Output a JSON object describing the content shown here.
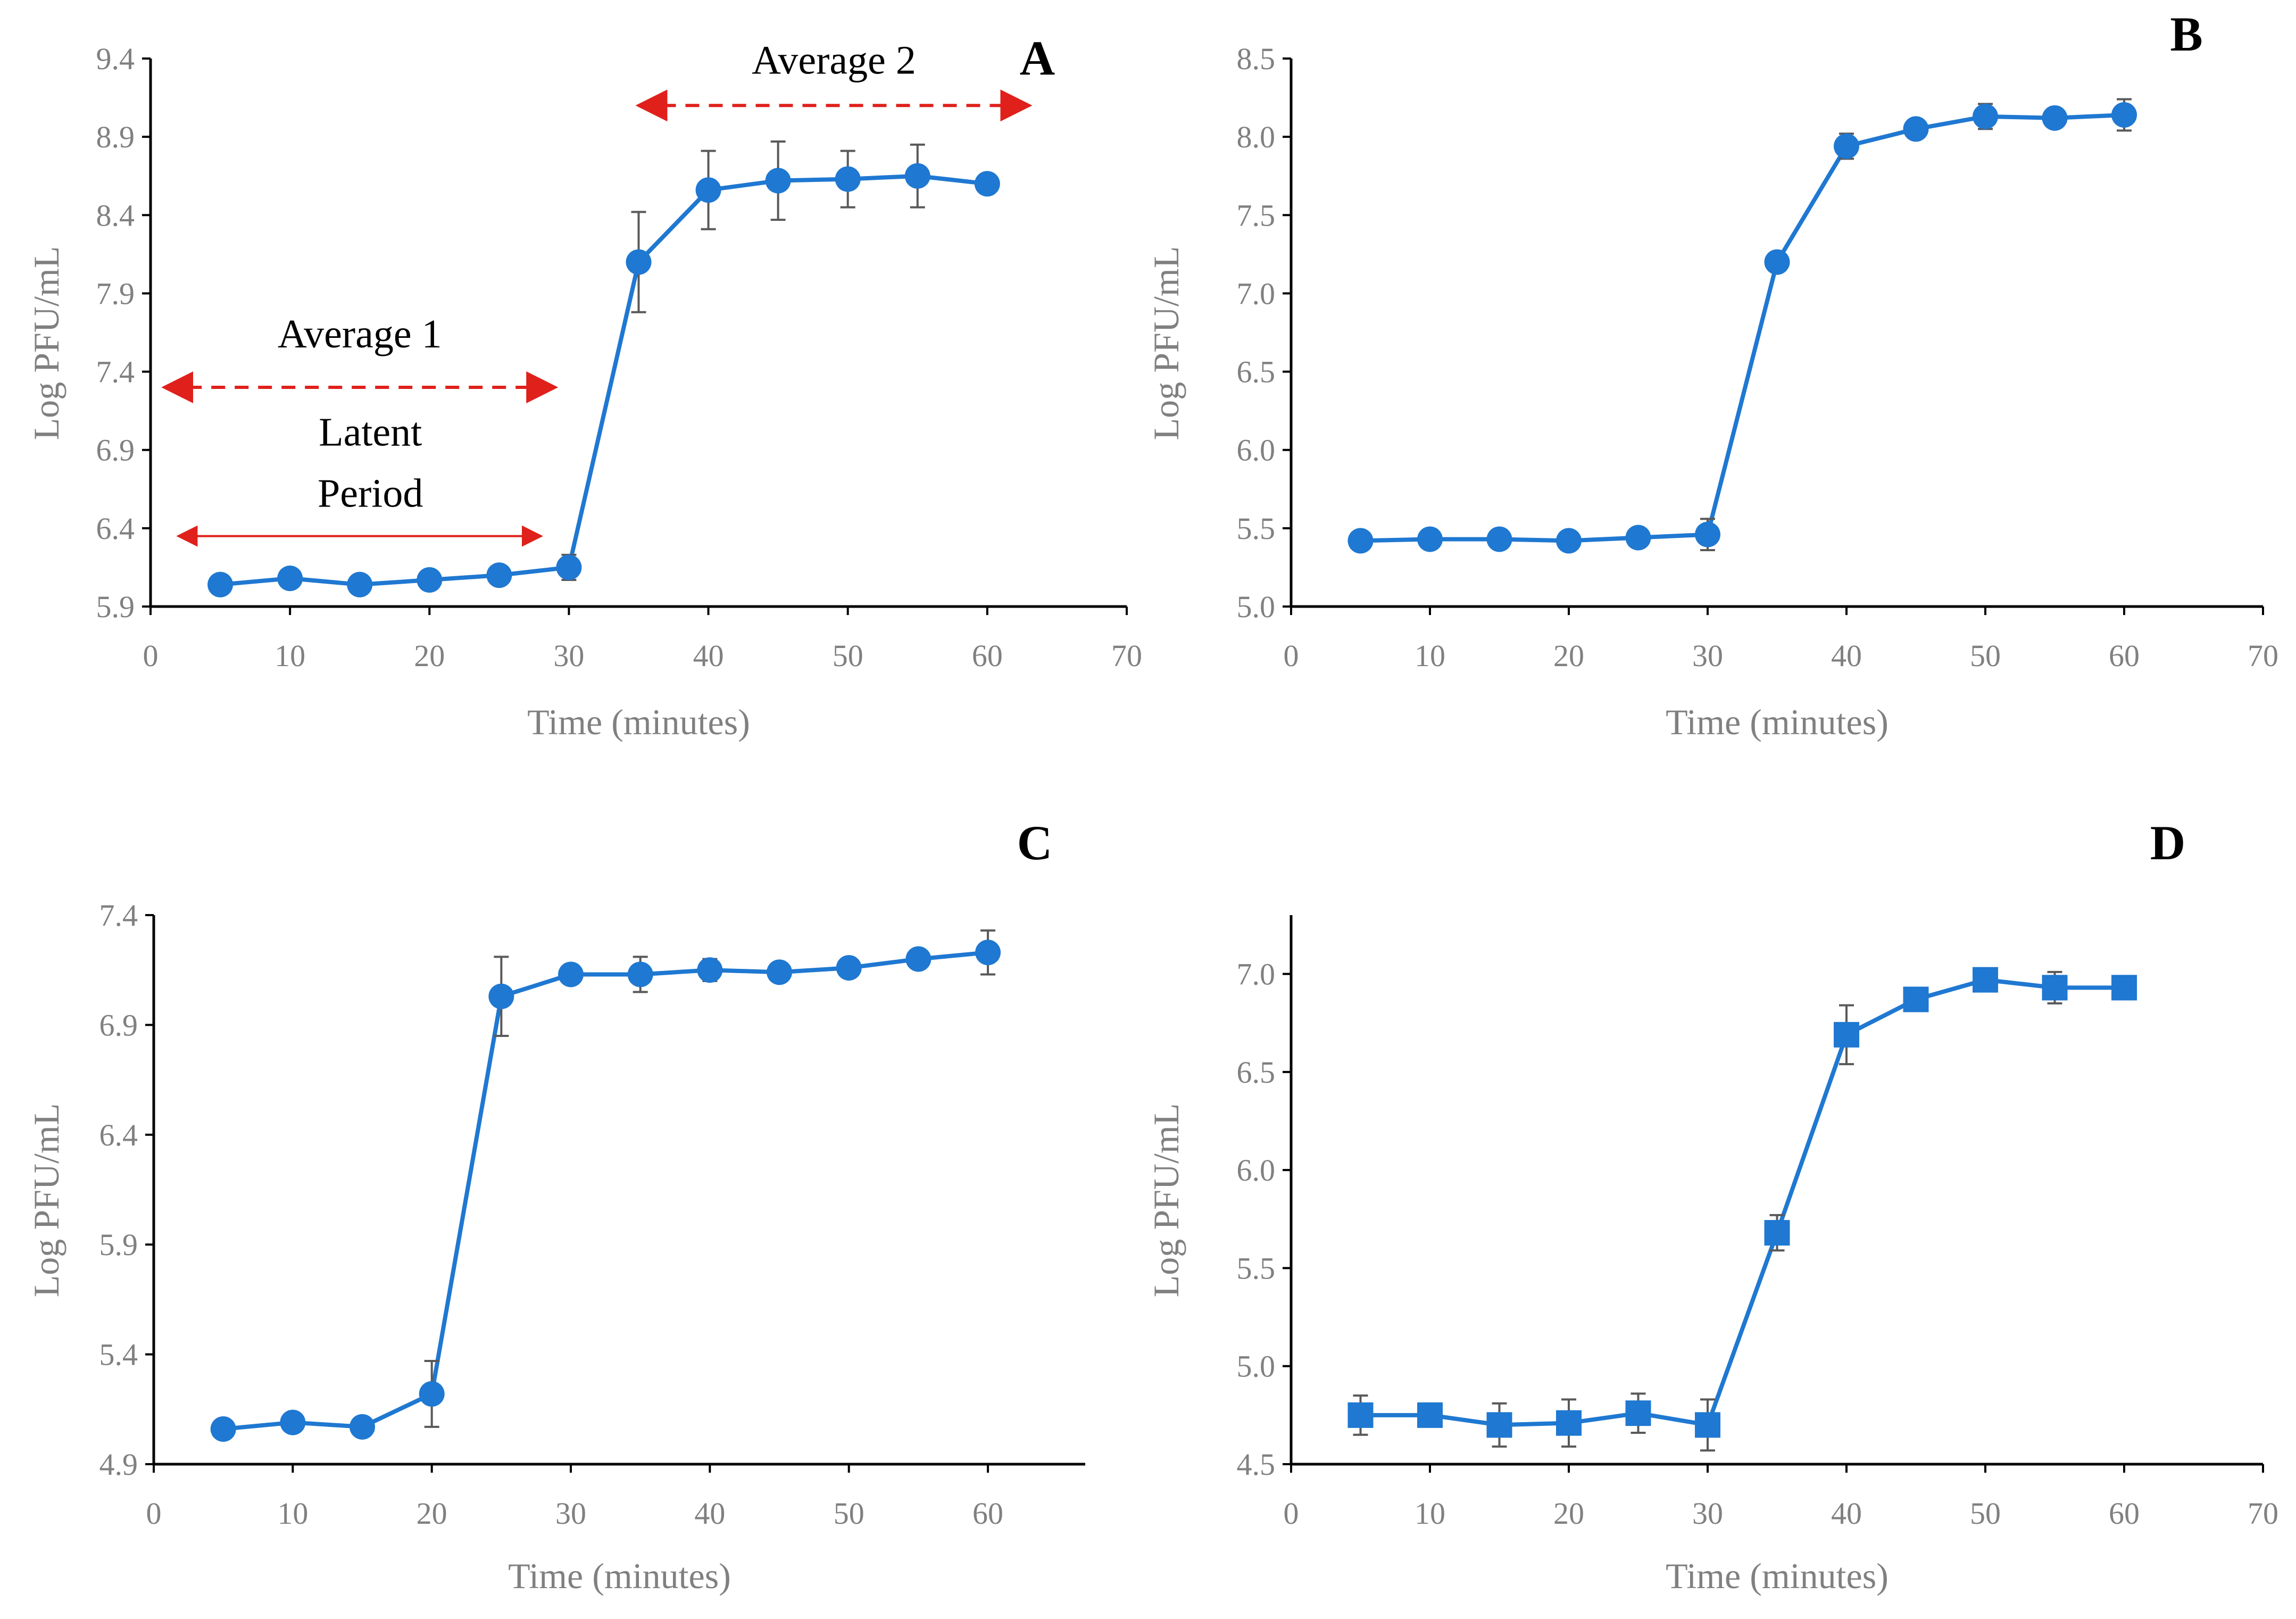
{
  "colors": {
    "series": "#1F78D1",
    "axis": "#000000",
    "tick_text": "#808080",
    "label_text": "#808080",
    "error_bar": "#595959",
    "annotation_red": "#E0201B",
    "annotation_text": "#000000"
  },
  "chart_data": [
    {
      "panel": "A",
      "type": "line",
      "marker": "circle",
      "xlabel": "Time (minutes)",
      "ylabel": "Log PFU/mL",
      "xlim": [
        0,
        70
      ],
      "ylim": [
        5.9,
        9.4
      ],
      "xticks": [
        0,
        10,
        20,
        30,
        40,
        50,
        60,
        70
      ],
      "yticks": [
        5.9,
        6.4,
        6.9,
        7.4,
        7.9,
        8.4,
        8.9,
        9.4
      ],
      "ytick_decimals": 1,
      "x": [
        5,
        10,
        15,
        20,
        25,
        30,
        35,
        40,
        45,
        50,
        55,
        60
      ],
      "y": [
        6.04,
        6.08,
        6.04,
        6.07,
        6.1,
        6.15,
        8.1,
        8.56,
        8.62,
        8.63,
        8.65,
        8.6
      ],
      "err": [
        0.04,
        0.03,
        0.03,
        0.03,
        0.03,
        0.08,
        0.32,
        0.25,
        0.25,
        0.18,
        0.2,
        0.06
      ],
      "annotations": {
        "average2": {
          "text": "Average 2",
          "x_from": 35,
          "x_to": 63,
          "y": 9.1
        },
        "average1": {
          "text": "Average 1",
          "x_from": 1,
          "x_to": 29,
          "y": 7.3
        },
        "latent": {
          "line1": "Latent",
          "line2": "Period",
          "x_from": 2,
          "x_to": 28,
          "y": 6.35
        }
      }
    },
    {
      "panel": "B",
      "type": "line",
      "marker": "circle",
      "xlabel": "Time (minutes)",
      "ylabel": "Log PFU/mL",
      "xlim": [
        0,
        70
      ],
      "ylim": [
        5.0,
        8.5
      ],
      "xticks": [
        0,
        10,
        20,
        30,
        40,
        50,
        60,
        70
      ],
      "yticks": [
        5.0,
        5.5,
        6.0,
        6.5,
        7.0,
        7.5,
        8.0,
        8.5
      ],
      "ytick_decimals": 1,
      "x": [
        5,
        10,
        15,
        20,
        25,
        30,
        35,
        40,
        45,
        50,
        55,
        60
      ],
      "y": [
        5.42,
        5.43,
        5.43,
        5.42,
        5.44,
        5.46,
        7.2,
        7.94,
        8.05,
        8.13,
        8.12,
        8.14
      ],
      "err": [
        0.01,
        0.01,
        0.01,
        0.01,
        0.02,
        0.1,
        0.06,
        0.08,
        0.03,
        0.08,
        0.04,
        0.1
      ]
    },
    {
      "panel": "C",
      "type": "line",
      "marker": "circle",
      "xlabel": "Time (minutes)",
      "ylabel": "Log PFU/mL",
      "xlim": [
        0,
        67
      ],
      "ylim": [
        4.9,
        7.4
      ],
      "xticks": [
        0,
        10,
        20,
        30,
        40,
        50,
        60
      ],
      "yticks": [
        4.9,
        5.4,
        5.9,
        6.4,
        6.9,
        7.4
      ],
      "ytick_decimals": 1,
      "x": [
        5,
        10,
        15,
        20,
        25,
        30,
        35,
        40,
        45,
        50,
        55,
        60
      ],
      "y": [
        5.06,
        5.09,
        5.07,
        5.22,
        7.03,
        7.13,
        7.13,
        7.15,
        7.14,
        7.16,
        7.2,
        7.23
      ],
      "err": [
        0.02,
        0.02,
        0.02,
        0.15,
        0.18,
        0.03,
        0.08,
        0.05,
        0.04,
        0.03,
        0.03,
        0.1
      ]
    },
    {
      "panel": "D",
      "type": "line",
      "marker": "square",
      "xlabel": "Time (minutes)",
      "ylabel": "Log PFU/mL",
      "xlim": [
        0,
        70
      ],
      "ylim": [
        4.5,
        7.3
      ],
      "xticks": [
        0,
        10,
        20,
        30,
        40,
        50,
        60,
        70
      ],
      "yticks": [
        4.5,
        5.0,
        5.5,
        6.0,
        6.5,
        7.0
      ],
      "ytick_decimals": 1,
      "x": [
        5,
        10,
        15,
        20,
        25,
        30,
        35,
        40,
        45,
        50,
        55,
        60
      ],
      "y": [
        4.75,
        4.75,
        4.7,
        4.71,
        4.76,
        4.7,
        5.68,
        6.69,
        6.87,
        6.97,
        6.93,
        6.93
      ],
      "err": [
        0.1,
        0.02,
        0.11,
        0.12,
        0.1,
        0.13,
        0.09,
        0.15,
        0.05,
        0.03,
        0.08,
        0.03
      ]
    }
  ]
}
